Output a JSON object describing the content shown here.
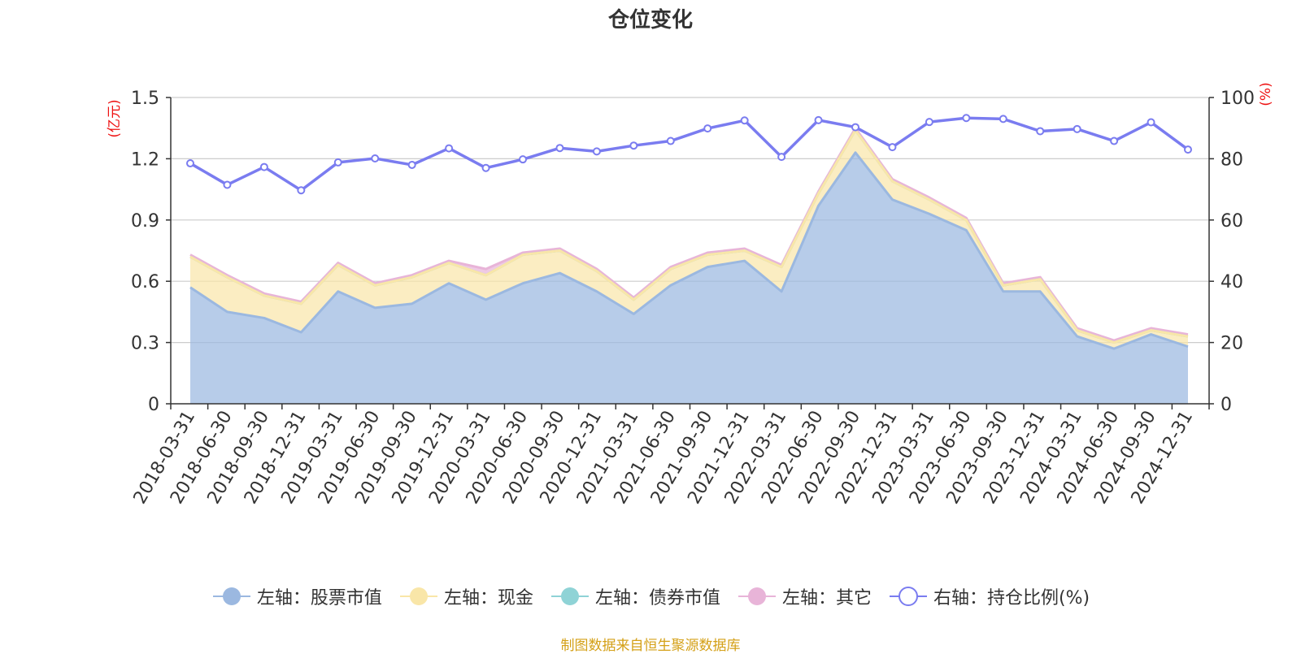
{
  "chart_data": {
    "type": "area",
    "title": "仓位变化",
    "categories": [
      "2018-03-31",
      "2018-06-30",
      "2018-09-30",
      "2018-12-31",
      "2019-03-31",
      "2019-06-30",
      "2019-09-30",
      "2019-12-31",
      "2020-03-31",
      "2020-06-30",
      "2020-09-30",
      "2020-12-31",
      "2021-03-31",
      "2021-06-30",
      "2021-09-30",
      "2021-12-31",
      "2022-03-31",
      "2022-06-30",
      "2022-09-30",
      "2022-12-31",
      "2023-03-31",
      "2023-06-30",
      "2023-09-30",
      "2023-12-31",
      "2024-03-31",
      "2024-06-30",
      "2024-09-30",
      "2024-12-31"
    ],
    "left_axis": {
      "unit": "(亿元)",
      "ylim": [
        0,
        1.5
      ],
      "ticks": [
        "0",
        "0.3",
        "0.6",
        "0.9",
        "1.2",
        "1.5"
      ]
    },
    "right_axis": {
      "unit": "(%)",
      "ylim": [
        0,
        100
      ],
      "ticks": [
        "0",
        "20",
        "40",
        "60",
        "80",
        "100"
      ]
    },
    "series": [
      {
        "name": "左轴：股票市值",
        "axis": "left",
        "color": "#9bb8e0",
        "values": [
          0.57,
          0.45,
          0.42,
          0.35,
          0.55,
          0.47,
          0.49,
          0.59,
          0.51,
          0.59,
          0.64,
          0.55,
          0.44,
          0.58,
          0.67,
          0.7,
          0.55,
          0.97,
          1.23,
          1.0,
          0.93,
          0.85,
          0.55,
          0.55,
          0.33,
          0.27,
          0.34,
          0.28
        ]
      },
      {
        "name": "左轴：现金",
        "axis": "left",
        "color": "#f9e6a8",
        "values": [
          0.15,
          0.17,
          0.11,
          0.14,
          0.13,
          0.11,
          0.13,
          0.1,
          0.12,
          0.14,
          0.11,
          0.1,
          0.07,
          0.08,
          0.06,
          0.05,
          0.12,
          0.06,
          0.11,
          0.09,
          0.07,
          0.05,
          0.03,
          0.06,
          0.03,
          0.03,
          0.02,
          0.05
        ]
      },
      {
        "name": "左轴：债券市值",
        "axis": "left",
        "color": "#8fd3d6",
        "values": [
          0,
          0,
          0,
          0,
          0,
          0,
          0,
          0,
          0,
          0,
          0,
          0,
          0,
          0,
          0,
          0,
          0,
          0,
          0,
          0,
          0,
          0,
          0,
          0,
          0,
          0,
          0,
          0
        ]
      },
      {
        "name": "左轴：其它",
        "axis": "left",
        "color": "#e8b4d8",
        "values": [
          0.01,
          0.01,
          0.01,
          0.01,
          0.01,
          0.01,
          0.01,
          0.01,
          0.03,
          0.01,
          0.01,
          0.01,
          0.01,
          0.01,
          0.01,
          0.01,
          0.01,
          0.01,
          0.01,
          0.01,
          0.01,
          0.01,
          0.01,
          0.01,
          0.01,
          0.01,
          0.01,
          0.01
        ]
      },
      {
        "name": "右轴：持仓比例(%)",
        "axis": "right",
        "color": "#7a7cf0",
        "values": [
          78.5,
          71.5,
          77.3,
          69.7,
          78.8,
          80.1,
          78.0,
          83.4,
          77.0,
          79.8,
          83.5,
          82.4,
          84.3,
          85.8,
          89.9,
          92.5,
          80.6,
          92.6,
          90.3,
          83.8,
          92.0,
          93.3,
          93.0,
          89.0,
          89.7,
          85.8,
          91.9,
          83.0
        ]
      }
    ]
  },
  "source": "制图数据来自恒生聚源数据库"
}
